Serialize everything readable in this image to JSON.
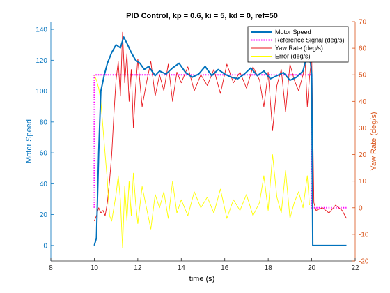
{
  "chart_data": {
    "type": "line",
    "title": "PID Control, kp = 0.6, ki = 5, kd = 0, ref=50",
    "xlabel": "time (s)",
    "ylabel_left": "Motor Speed",
    "ylabel_right": "Yaw Rate (deg/s)",
    "xlim": [
      8,
      22
    ],
    "ylim_left": [
      -10,
      145
    ],
    "ylim_right": [
      -20,
      70
    ],
    "x_ticks": [
      8,
      10,
      12,
      14,
      16,
      18,
      20,
      22
    ],
    "y_ticks_left": [
      0,
      20,
      40,
      60,
      80,
      100,
      120,
      140
    ],
    "y_ticks_right": [
      -20,
      -10,
      0,
      10,
      20,
      30,
      40,
      50,
      60,
      70
    ],
    "legend_position": "top-right",
    "grid": false,
    "colors": {
      "left_axis": "#0072bd",
      "right_axis": "#d95319",
      "motor_speed": "#0072bd",
      "reference": "#ff00ff",
      "yaw_rate": "#e8151b",
      "error": "#ffff00"
    },
    "series": [
      {
        "name": "Motor Speed",
        "axis": "left",
        "style": "solid-thick",
        "x": [
          10.0,
          10.1,
          10.2,
          10.3,
          10.45,
          10.6,
          10.8,
          11.0,
          11.2,
          11.35,
          11.5,
          11.7,
          11.9,
          12.1,
          12.3,
          12.5,
          12.8,
          13.0,
          13.3,
          13.6,
          13.9,
          14.2,
          14.5,
          14.8,
          15.1,
          15.4,
          15.7,
          16.0,
          16.3,
          16.6,
          16.9,
          17.2,
          17.5,
          17.8,
          18.1,
          18.4,
          18.7,
          19.0,
          19.3,
          19.6,
          19.8,
          19.95,
          20.0,
          20.05,
          21.6
        ],
        "y": [
          0,
          5,
          60,
          100,
          110,
          118,
          125,
          130,
          128,
          135,
          131,
          125,
          120,
          118,
          114,
          116,
          110,
          113,
          111,
          115,
          118,
          112,
          109,
          111,
          116,
          110,
          114,
          111,
          109,
          108,
          111,
          115,
          110,
          113,
          108,
          110,
          112,
          107,
          109,
          113,
          124,
          118,
          111,
          0,
          0
        ]
      },
      {
        "name": "Reference Signal (deg/s)",
        "axis": "right",
        "style": "dotted",
        "x": [
          10.0,
          10.0,
          20.0,
          20.0,
          21.6
        ],
        "y": [
          0,
          50,
          50,
          0,
          0
        ]
      },
      {
        "name": "Yaw Rate (deg/s)",
        "axis": "right",
        "style": "solid-thin",
        "x": [
          10.0,
          10.1,
          10.2,
          10.3,
          10.4,
          10.5,
          10.6,
          10.7,
          10.8,
          10.9,
          11.0,
          11.1,
          11.2,
          11.3,
          11.4,
          11.5,
          11.6,
          11.7,
          11.8,
          11.9,
          12.0,
          12.2,
          12.4,
          12.6,
          12.8,
          13.0,
          13.2,
          13.4,
          13.6,
          13.8,
          14.0,
          14.3,
          14.6,
          14.9,
          15.2,
          15.5,
          15.8,
          16.1,
          16.4,
          16.7,
          17.0,
          17.3,
          17.6,
          17.8,
          18.0,
          18.2,
          18.4,
          18.6,
          18.8,
          19.0,
          19.2,
          19.4,
          19.6,
          19.7,
          19.8,
          19.9,
          20.0,
          20.1,
          20.2,
          20.5,
          20.8,
          21.1,
          21.4,
          21.6
        ],
        "y": [
          -5,
          -3,
          0,
          -2,
          -1,
          -3,
          2,
          10,
          20,
          35,
          48,
          55,
          42,
          66,
          47,
          58,
          40,
          52,
          30,
          45,
          56,
          38,
          47,
          55,
          42,
          50,
          44,
          54,
          40,
          51,
          47,
          53,
          44,
          50,
          46,
          52,
          43,
          54,
          47,
          51,
          45,
          53,
          48,
          38,
          51,
          29,
          46,
          52,
          36,
          54,
          48,
          44,
          50,
          55,
          38,
          49,
          57,
          2,
          -1,
          0,
          -2,
          1,
          -1,
          -4
        ]
      },
      {
        "name": "Error (deg/s)",
        "axis": "right",
        "style": "solid-thin",
        "x": [
          10.0,
          10.1,
          10.2,
          10.3,
          10.4,
          10.5,
          10.6,
          10.7,
          10.8,
          10.9,
          11.0,
          11.1,
          11.2,
          11.3,
          11.4,
          11.5,
          11.6,
          11.7,
          11.8,
          11.9,
          12.0,
          12.2,
          12.4,
          12.6,
          12.8,
          13.0,
          13.2,
          13.4,
          13.6,
          13.8,
          14.0,
          14.3,
          14.6,
          14.9,
          15.2,
          15.5,
          15.8,
          16.1,
          16.4,
          16.7,
          17.0,
          17.3,
          17.6,
          17.8,
          18.0,
          18.2,
          18.4,
          18.6,
          18.8,
          19.0,
          19.2,
          19.4,
          19.6,
          19.8,
          19.9
        ],
        "y": [
          50,
          48,
          45,
          40,
          30,
          20,
          10,
          -3,
          -5,
          0,
          5,
          12,
          3,
          -15,
          8,
          -5,
          10,
          -3,
          13,
          2,
          -6,
          8,
          0,
          -8,
          5,
          0,
          6,
          -4,
          10,
          -2,
          3,
          -3,
          6,
          0,
          4,
          -2,
          7,
          -4,
          3,
          -1,
          5,
          -3,
          2,
          12,
          -1,
          20,
          4,
          -2,
          14,
          -4,
          2,
          6,
          0,
          12,
          1
        ]
      }
    ]
  }
}
